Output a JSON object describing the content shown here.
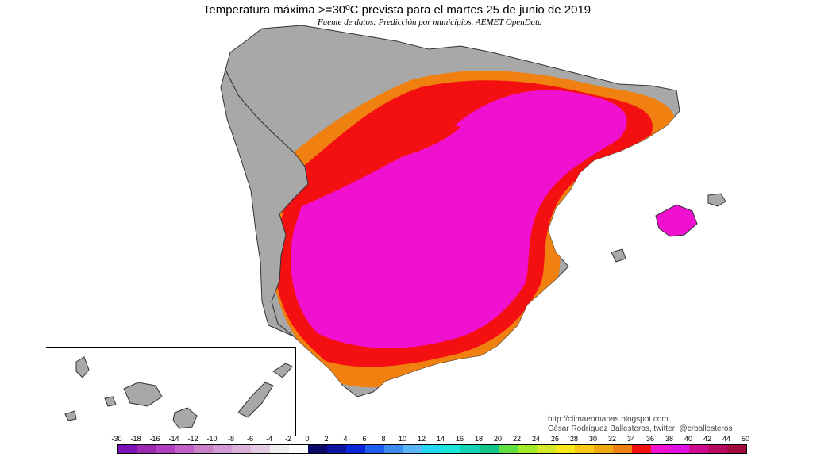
{
  "header": {
    "title": "Temperatura máxima >=30ºC prevista para el martes 25 de junio de 2019",
    "subtitle": "Fuente de datos: Predicción por municipios. AEMET OpenData"
  },
  "credits": {
    "blog": "http://climaenmapas.blogspot.com",
    "author": "César Rodríguez Ballesteros, twitter: @crballesteros"
  },
  "legend": {
    "ticks": [
      "-30",
      "-18",
      "-16",
      "-14",
      "-12",
      "-10",
      "-8",
      "-6",
      "-4",
      "-2",
      "0",
      "2",
      "4",
      "6",
      "8",
      "10",
      "12",
      "14",
      "16",
      "18",
      "20",
      "22",
      "24",
      "26",
      "28",
      "30",
      "32",
      "34",
      "36",
      "38",
      "40",
      "42",
      "44",
      "50"
    ],
    "colors": [
      "#7a12b4",
      "#9c27b0",
      "#b040c0",
      "#c060c8",
      "#c880c8",
      "#d29ad2",
      "#dab2da",
      "#e4cce4",
      "#eeeeee",
      "#ffffff",
      "#0a0a6a",
      "#0a14a0",
      "#0a28d8",
      "#1f5ef0",
      "#3c8cf0",
      "#5ab4f8",
      "#24d8f4",
      "#1ce6dc",
      "#16d2b4",
      "#10c48c",
      "#60e040",
      "#a0e82a",
      "#d4e826",
      "#f8e81a",
      "#f8c814",
      "#f0a80e",
      "#f08010",
      "#f41010",
      "#f010d0",
      "#e010e0",
      "#d00a90",
      "#b80a60",
      "#a00840"
    ],
    "below_threshold_color": "#a8a8a8"
  }
}
